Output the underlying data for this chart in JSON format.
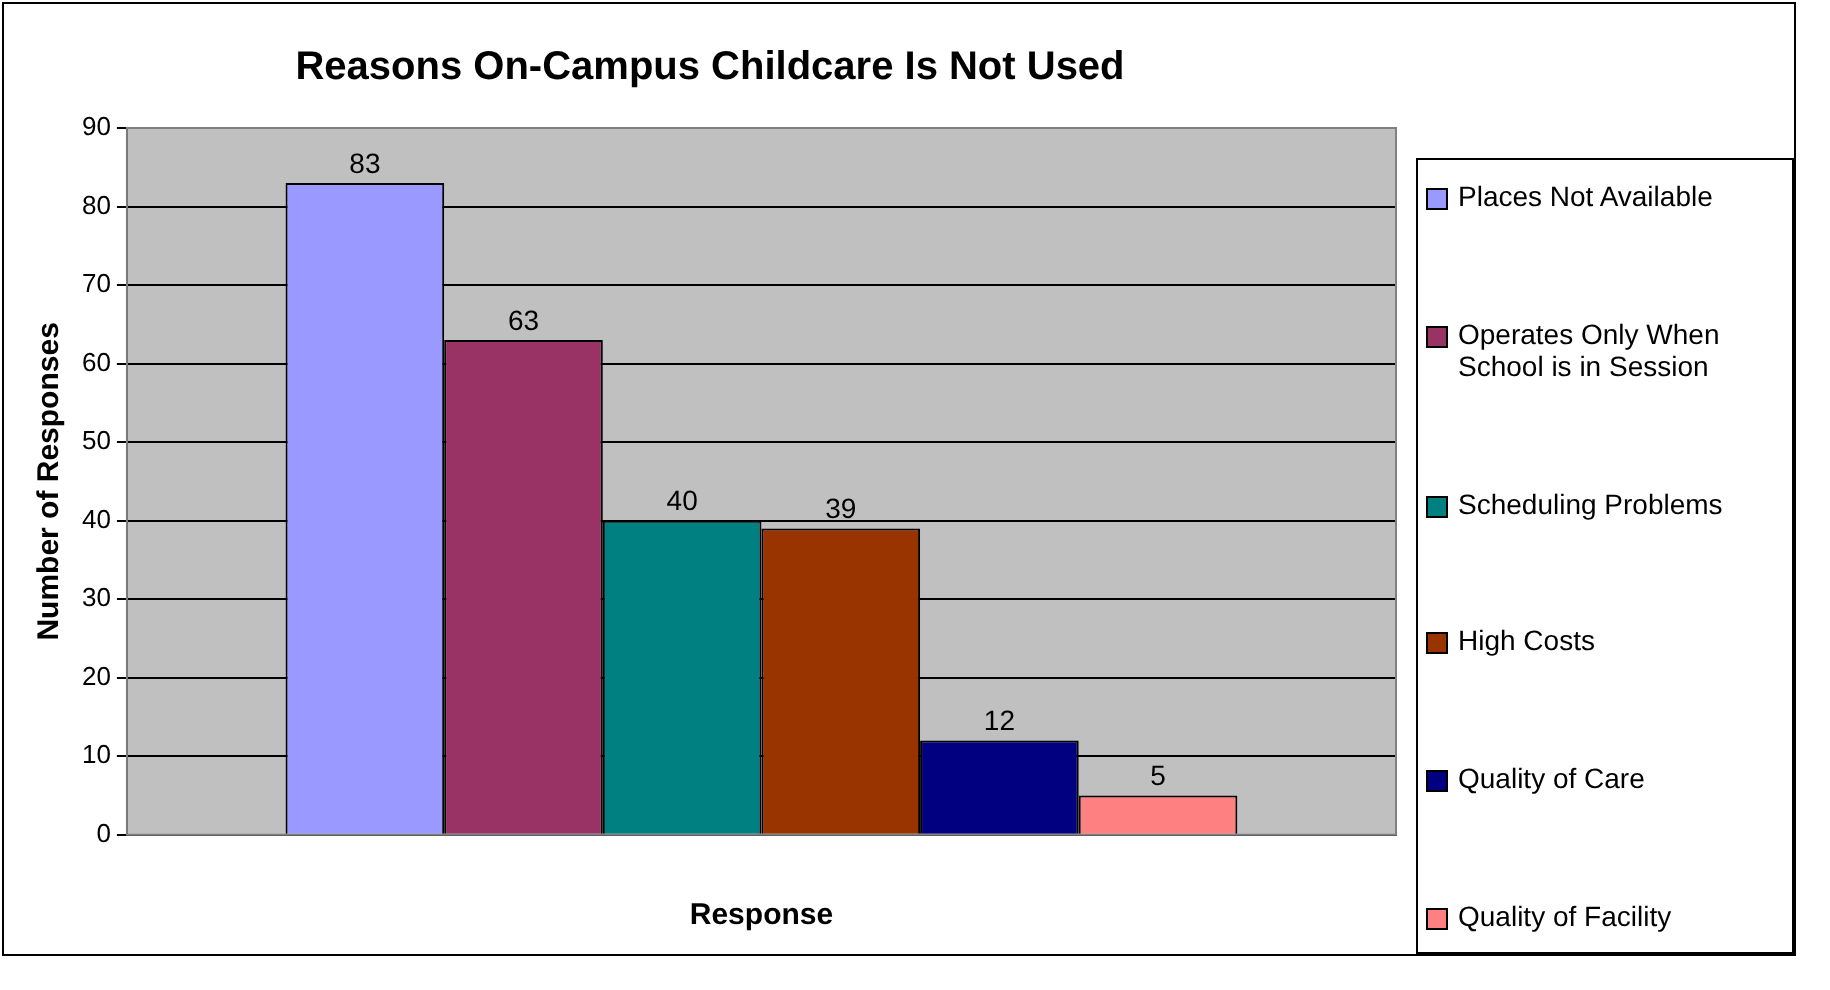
{
  "chart_data": {
    "type": "bar",
    "title": "Reasons On-Campus Childcare Is Not Used",
    "xlabel": "Response",
    "ylabel": "Number of Responses",
    "categories": [
      null
    ],
    "series": [
      {
        "name": "Places Not Available",
        "color": "#9999ff",
        "values": [
          83
        ]
      },
      {
        "name": "Operates Only When School is in Session",
        "color": "#993366",
        "values": [
          63
        ]
      },
      {
        "name": "Scheduling Problems",
        "color": "#008080",
        "values": [
          40
        ]
      },
      {
        "name": "High Costs",
        "color": "#993300",
        "values": [
          39
        ]
      },
      {
        "name": "Quality of Care",
        "color": "#000080",
        "values": [
          12
        ]
      },
      {
        "name": "Quality of Facility",
        "color": "#ff8080",
        "values": [
          5
        ]
      }
    ],
    "ylim": [
      0,
      90
    ],
    "yticks": [
      0,
      10,
      20,
      30,
      40,
      50,
      60,
      70,
      80,
      90
    ],
    "grid": "y",
    "legend": "right",
    "data_labels": true
  }
}
